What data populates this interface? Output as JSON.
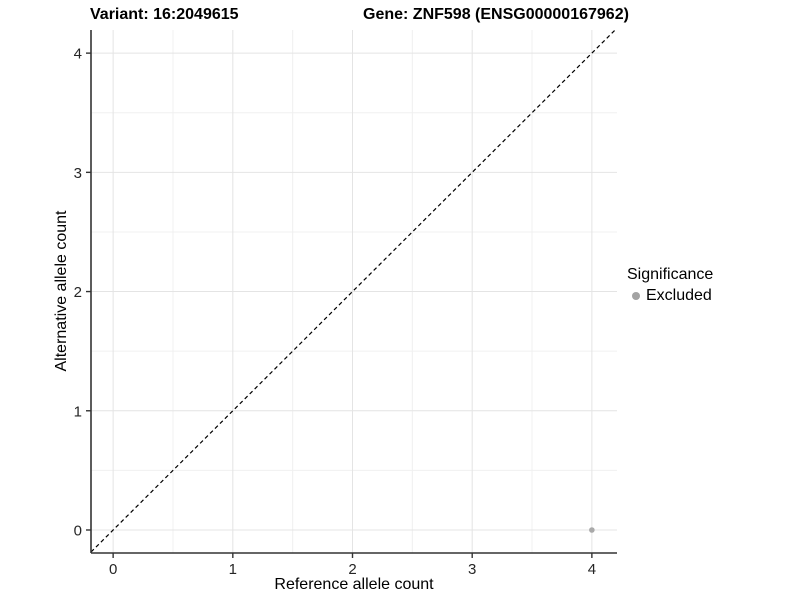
{
  "titles": {
    "variant": "Variant: 16:2049615",
    "gene": "Gene: ZNF598 (ENSG00000167962)"
  },
  "legend": {
    "title": "Significance",
    "items": [
      {
        "label": "Excluded",
        "color": "#a3a3a3"
      }
    ]
  },
  "colors": {
    "background": "#ffffff",
    "grid_major": "#e4e4e4",
    "grid_minor": "#f0f0f0",
    "axis_line": "#333333",
    "tick_mark": "#333333",
    "tick_text": "#262626",
    "identity_line": "#000000",
    "point": "#a9a9a9"
  },
  "chart_data": {
    "type": "scatter",
    "title_left": "Variant: 16:2049615",
    "title_right": "Gene: ZNF598 (ENSG00000167962)",
    "xlabel": "Reference allele count",
    "ylabel": "Alternative allele count",
    "xlim": [
      -0.185,
      4.21
    ],
    "ylim": [
      -0.193,
      4.194
    ],
    "x_ticks": [
      0,
      1,
      2,
      3,
      4
    ],
    "y_ticks": [
      0,
      1,
      2,
      3,
      4
    ],
    "x_minor_ticks": [
      0.5,
      1.5,
      2.5,
      3.5
    ],
    "y_minor_ticks": [
      0.5,
      1.5,
      2.5,
      3.5
    ],
    "grid": true,
    "legend_position": "right",
    "identity_line": {
      "style": "dashed",
      "slope": 1,
      "intercept": 0,
      "from": -0.185,
      "to": 4.194
    },
    "series": [
      {
        "name": "Excluded",
        "color": "#a9a9a9",
        "points": [
          {
            "x": 4,
            "y": 0
          }
        ]
      }
    ]
  }
}
